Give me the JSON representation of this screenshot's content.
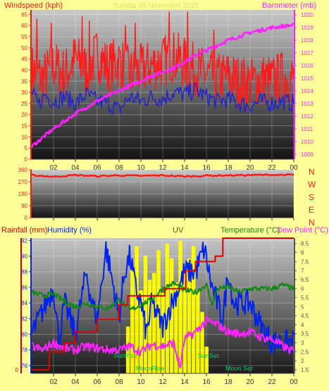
{
  "colors": {
    "page_bg": "#ffff99",
    "wind": "#ff1a1a",
    "gust": "#2222cc",
    "pressure": "#ff22ff",
    "direction": "#ff1a1a",
    "humidity": "#0022ee",
    "temperature": "#118811",
    "dewpoint": "#ff22ff",
    "rain": "#dd0000",
    "uv": "#ffff00",
    "sun_text": "#00cc66",
    "faded_title": "#dddd66"
  },
  "header": {
    "left_label": "Windspeed (kph)",
    "right_label": "Barometer (mb)",
    "date_title": "Sunday 09 November 2025"
  },
  "labels": {
    "rainfall": "Rainfall (mm)",
    "humidity": "Humidity (%)",
    "uv": "UV",
    "temperature": "Temperature (°C)",
    "dewpoint": "Dew Point (°C)",
    "compass": [
      "N",
      "W",
      "S",
      "E",
      "N"
    ],
    "sunrise": "SunRise",
    "sunset": "SunSet",
    "moonrise": "MoonRise",
    "moonset": "Moon Set"
  },
  "chart_data": [
    {
      "type": "line",
      "name": "wind-pressure",
      "x_ticks": [
        "02",
        "04",
        "06",
        "08",
        "10",
        "12",
        "14",
        "16",
        "18",
        "20",
        "22",
        "00"
      ],
      "xlim_hours": [
        0,
        24
      ],
      "y_left": {
        "label": "Windspeed (kph)",
        "ticks": [
          0,
          5,
          10,
          15,
          20,
          25,
          30,
          35,
          40,
          45,
          50,
          55,
          60,
          65
        ],
        "lim": [
          0,
          67
        ]
      },
      "y_right": {
        "label": "Barometer (mb)",
        "ticks": [
          1009,
          1010,
          1011,
          1012,
          1013,
          1014,
          1015,
          1016,
          1017,
          1018,
          1019,
          1020
        ],
        "lim": [
          1008.6,
          1020.4
        ]
      },
      "series": [
        {
          "key": "wind",
          "axis": "left",
          "color": "#ff1a1a",
          "points": [
            [
              0,
              40
            ],
            [
              1,
              36
            ],
            [
              2,
              42
            ],
            [
              3,
              38
            ],
            [
              4,
              45
            ],
            [
              5,
              40
            ],
            [
              6,
              47
            ],
            [
              7,
              41
            ],
            [
              8,
              44
            ],
            [
              9,
              38
            ],
            [
              10,
              40
            ],
            [
              11,
              42
            ],
            [
              12,
              44
            ],
            [
              13,
              46
            ],
            [
              14,
              43
            ],
            [
              15,
              40
            ],
            [
              16,
              38
            ],
            [
              17,
              36
            ],
            [
              18,
              37
            ],
            [
              19,
              35
            ],
            [
              20,
              34
            ],
            [
              21,
              36
            ],
            [
              22,
              35
            ],
            [
              23,
              37
            ],
            [
              24,
              36
            ]
          ],
          "noise": 12,
          "spikes": [
            [
              0.5,
              63
            ],
            [
              1.8,
              61
            ],
            [
              4.6,
              64
            ],
            [
              5.3,
              62
            ],
            [
              8.6,
              60
            ],
            [
              9.5,
              61
            ],
            [
              12.6,
              66
            ],
            [
              14.3,
              66
            ],
            [
              16.7,
              58
            ]
          ]
        },
        {
          "key": "gust",
          "axis": "left",
          "color": "#2222cc",
          "points": [
            [
              0,
              30
            ],
            [
              0.6,
              24
            ],
            [
              1.2,
              29
            ],
            [
              2,
              26
            ],
            [
              3,
              28
            ],
            [
              4,
              25
            ],
            [
              5,
              29
            ],
            [
              6,
              26
            ],
            [
              7,
              25
            ],
            [
              8,
              22
            ],
            [
              9,
              28
            ],
            [
              10,
              26
            ],
            [
              11,
              28
            ],
            [
              12,
              27
            ],
            [
              13,
              30
            ],
            [
              14,
              29
            ],
            [
              15,
              31
            ],
            [
              16,
              28
            ],
            [
              17,
              26
            ],
            [
              18,
              27
            ],
            [
              19,
              25
            ],
            [
              20,
              24
            ],
            [
              21,
              26
            ],
            [
              22,
              25
            ],
            [
              23,
              26
            ],
            [
              24,
              25
            ]
          ],
          "noise": 4
        },
        {
          "key": "pressure",
          "axis": "right",
          "color": "#ff22ff",
          "points": [
            [
              0,
              1009.6
            ],
            [
              1,
              1010.3
            ],
            [
              2,
              1011.0
            ],
            [
              3,
              1011.6
            ],
            [
              4,
              1012.2
            ],
            [
              5,
              1012.7
            ],
            [
              6,
              1013.2
            ],
            [
              7,
              1013.6
            ],
            [
              8,
              1014.0
            ],
            [
              9,
              1014.4
            ],
            [
              10,
              1014.8
            ],
            [
              11,
              1015.2
            ],
            [
              12,
              1015.5
            ],
            [
              13,
              1015.8
            ],
            [
              14,
              1016.3
            ],
            [
              15,
              1016.8
            ],
            [
              16,
              1017.2
            ],
            [
              17,
              1017.6
            ],
            [
              18,
              1018.0
            ],
            [
              19,
              1018.3
            ],
            [
              20,
              1018.6
            ],
            [
              21,
              1018.8
            ],
            [
              22,
              1019.0
            ],
            [
              23,
              1019.1
            ],
            [
              24,
              1019.2
            ]
          ],
          "noise": 0.15
        }
      ]
    },
    {
      "type": "line",
      "name": "wind-direction",
      "x_ticks": [
        "02",
        "04",
        "06",
        "08",
        "10",
        "12",
        "14",
        "16",
        "18",
        "20",
        "22",
        "00"
      ],
      "xlim_hours": [
        0,
        24
      ],
      "y_left": {
        "ticks": [
          0,
          90,
          180,
          270,
          360
        ],
        "lim": [
          0,
          360
        ]
      },
      "series": [
        {
          "key": "direction",
          "axis": "left",
          "color": "#ff1a1a",
          "points": [
            [
              0,
              320
            ],
            [
              2,
              308
            ],
            [
              4,
              320
            ],
            [
              6,
              312
            ],
            [
              8,
              318
            ],
            [
              10,
              314
            ],
            [
              12,
              318
            ],
            [
              14,
              310
            ],
            [
              16,
              316
            ],
            [
              18,
              318
            ],
            [
              20,
              320
            ],
            [
              22,
              322
            ],
            [
              24,
              322
            ]
          ],
          "noise": 5
        }
      ]
    },
    {
      "type": "line",
      "name": "humidity-temperature-uv",
      "x_ticks": [
        "02",
        "04",
        "06",
        "08",
        "10",
        "12",
        "14",
        "16",
        "18",
        "20",
        "22",
        "00"
      ],
      "xlim_hours": [
        0,
        24
      ],
      "y_left": {
        "label": "Humidity (%)",
        "ticks": [
          76,
          78,
          80,
          82,
          84,
          86,
          88,
          90,
          92
        ],
        "lim": [
          75,
          92.3
        ]
      },
      "y_right": {
        "label": "Temperature (°C)",
        "ticks": [
          1.5,
          2,
          2.5,
          3,
          3.5,
          4,
          4.5,
          5,
          5.5,
          6,
          6.5,
          7,
          7.5,
          8,
          8.5
        ],
        "lim": [
          1.3,
          8.8
        ]
      },
      "rain_axis_ticks": [
        0
      ],
      "series": [
        {
          "key": "humidity",
          "axis": "left",
          "color": "#0022ee",
          "points": [
            [
              0,
              80
            ],
            [
              1,
              83
            ],
            [
              2,
              86
            ],
            [
              2.5,
              79
            ],
            [
              3,
              84
            ],
            [
              4,
              80
            ],
            [
              5,
              88
            ],
            [
              5.5,
              84
            ],
            [
              6,
              82
            ],
            [
              6.8,
              91
            ],
            [
              7.5,
              86
            ],
            [
              8,
              82
            ],
            [
              8.5,
              88
            ],
            [
              9,
              90
            ],
            [
              9.5,
              86
            ],
            [
              10,
              84
            ],
            [
              10.5,
              80
            ],
            [
              11,
              84
            ],
            [
              12,
              81
            ],
            [
              12.8,
              84
            ],
            [
              13.5,
              86
            ],
            [
              14,
              88
            ],
            [
              15,
              88
            ],
            [
              15.8,
              91
            ],
            [
              16.5,
              86
            ],
            [
              17,
              84
            ],
            [
              17.5,
              82
            ],
            [
              18,
              88
            ],
            [
              18.5,
              84
            ],
            [
              19,
              84
            ],
            [
              19.5,
              84
            ],
            [
              20,
              84
            ],
            [
              21,
              81
            ],
            [
              22,
              79
            ],
            [
              23,
              79
            ],
            [
              24,
              79
            ]
          ],
          "noise": 1.6
        },
        {
          "key": "temperature",
          "axis": "right",
          "color": "#118811",
          "points": [
            [
              0,
              5.8
            ],
            [
              1,
              5.6
            ],
            [
              2,
              5.7
            ],
            [
              3,
              5.3
            ],
            [
              4,
              5.0
            ],
            [
              5,
              5.2
            ],
            [
              6,
              5.0
            ],
            [
              7,
              4.9
            ],
            [
              8,
              5.4
            ],
            [
              9,
              4.8
            ],
            [
              10,
              5.1
            ],
            [
              11,
              5.4
            ],
            [
              12,
              6.0
            ],
            [
              13,
              6.3
            ],
            [
              14,
              5.9
            ],
            [
              15,
              5.8
            ],
            [
              16,
              6.2
            ],
            [
              16.5,
              5.1
            ],
            [
              17,
              6.0
            ],
            [
              18,
              6.1
            ],
            [
              19,
              5.8
            ],
            [
              20,
              6.0
            ],
            [
              21,
              6.0
            ],
            [
              22,
              6.0
            ],
            [
              23,
              6.2
            ],
            [
              24,
              6.0
            ]
          ],
          "noise": 0.15
        },
        {
          "key": "dewpoint",
          "axis": "right",
          "color": "#ff22ff",
          "points": [
            [
              0,
              2.8
            ],
            [
              1,
              2.6
            ],
            [
              2,
              3.0
            ],
            [
              3,
              2.7
            ],
            [
              4,
              2.6
            ],
            [
              5,
              2.8
            ],
            [
              6,
              2.7
            ],
            [
              7,
              2.6
            ],
            [
              8,
              2.6
            ],
            [
              9,
              2.8
            ],
            [
              10,
              2.5
            ],
            [
              11,
              2.9
            ],
            [
              12,
              2.8
            ],
            [
              13,
              3.0
            ],
            [
              13.6,
              1.6
            ],
            [
              14,
              3.2
            ],
            [
              15,
              3.6
            ],
            [
              16,
              4.2
            ],
            [
              17,
              4.0
            ],
            [
              18,
              3.6
            ],
            [
              19,
              3.5
            ],
            [
              20,
              3.6
            ],
            [
              21,
              3.3
            ],
            [
              22,
              3.2
            ],
            [
              23,
              2.8
            ],
            [
              24,
              2.5
            ]
          ],
          "noise": 0.25
        },
        {
          "key": "rain_cumulative",
          "axis": "rain",
          "color": "#dd0000",
          "points": [
            [
              0,
              1.5
            ],
            [
              1.6,
              1.5
            ],
            [
              1.6,
              2.5
            ],
            [
              3.0,
              2.5
            ],
            [
              3.0,
              3.0
            ],
            [
              4.0,
              3.0
            ],
            [
              4.0,
              3.6
            ],
            [
              6.0,
              3.6
            ],
            [
              6.0,
              4.3
            ],
            [
              8.0,
              4.3
            ],
            [
              8.0,
              5.1
            ],
            [
              8.8,
              5.1
            ],
            [
              8.8,
              5.6
            ],
            [
              12.2,
              5.6
            ],
            [
              12.2,
              6.0
            ],
            [
              14.1,
              6.0
            ],
            [
              14.1,
              7.0
            ],
            [
              15.0,
              7.0
            ],
            [
              15.0,
              7.5
            ],
            [
              16.8,
              7.5
            ],
            [
              16.8,
              7.8
            ],
            [
              17.5,
              7.8
            ],
            [
              17.5,
              8.8
            ],
            [
              24,
              8.8
            ]
          ]
        },
        {
          "key": "uv",
          "axis": "uv",
          "color": "#ffff00",
          "bars": [
            [
              8.8,
              35
            ],
            [
              9.2,
              80
            ],
            [
              9.6,
              95
            ],
            [
              10.0,
              62
            ],
            [
              10.4,
              88
            ],
            [
              10.8,
              70
            ],
            [
              11.2,
              75
            ],
            [
              11.6,
              92
            ],
            [
              12.0,
              60
            ],
            [
              12.4,
              97
            ],
            [
              12.8,
              86
            ],
            [
              13.2,
              68
            ],
            [
              13.6,
              99
            ],
            [
              14.0,
              78
            ],
            [
              14.4,
              86
            ],
            [
              14.8,
              95
            ],
            [
              15.2,
              62
            ],
            [
              15.6,
              46
            ],
            [
              16.0,
              20
            ]
          ]
        }
      ]
    }
  ]
}
